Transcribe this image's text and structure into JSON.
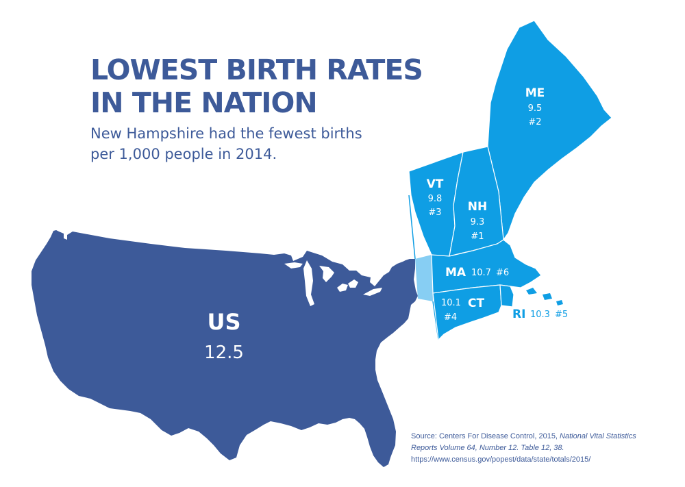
{
  "title": {
    "line1": "LOWEST BIRTH RATES",
    "line2": "IN THE NATION"
  },
  "subtitle": {
    "line1": "New Hampshire had the fewest births",
    "line2": "per 1,000 people in 2014."
  },
  "colors": {
    "us_fill": "#3d5a99",
    "new_england_fill": "#0f9ee4",
    "connector_fill": "#87cef3",
    "title_text": "#3d5a99",
    "state_label_text": "#ffffff"
  },
  "us": {
    "abbr": "US",
    "rate": "12.5"
  },
  "states": [
    {
      "id": "me",
      "abbr": "ME",
      "rate": "9.5",
      "rank": "#2"
    },
    {
      "id": "vt",
      "abbr": "VT",
      "rate": "9.8",
      "rank": "#3"
    },
    {
      "id": "nh",
      "abbr": "NH",
      "rate": "9.3",
      "rank": "#1"
    },
    {
      "id": "ma",
      "abbr": "MA",
      "rate": "10.7",
      "rank": "#6"
    },
    {
      "id": "ct",
      "abbr": "CT",
      "rate": "10.1",
      "rank": "#4"
    },
    {
      "id": "ri",
      "abbr": "RI",
      "rate": "10.3",
      "rank": "#5"
    }
  ],
  "source": {
    "prefix": "Source: Centers For Disease Control, 2015, ",
    "italic1": "National Vital Statistics",
    "italic2": "Reports Volume 64, Number 12. Table 12, 38.",
    "url": "https://www.census.gov/popest/data/state/totals/2015/"
  }
}
